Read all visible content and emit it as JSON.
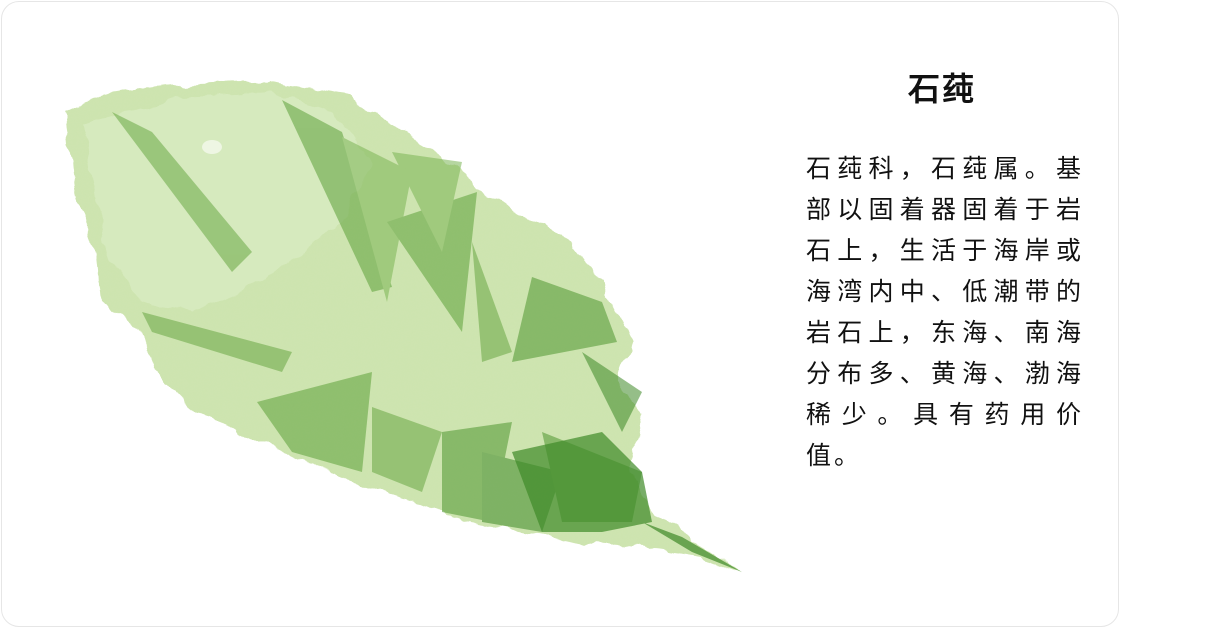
{
  "card": {
    "title": "石莼",
    "description": "石莼科，石莼属。基部以固着器固着于岩石上，生活于海岸或海湾内中、低潮带的岩石上，东海、南海分布多、黄海、渤海稀少。具有药用价值。"
  },
  "illustration": {
    "icon": "sea-lettuce-leaf-icon",
    "colors": {
      "light": "#cfe5b0",
      "mid": "#a8cf7e",
      "dark": "#5ea13a",
      "deep": "#3f8a28"
    }
  }
}
